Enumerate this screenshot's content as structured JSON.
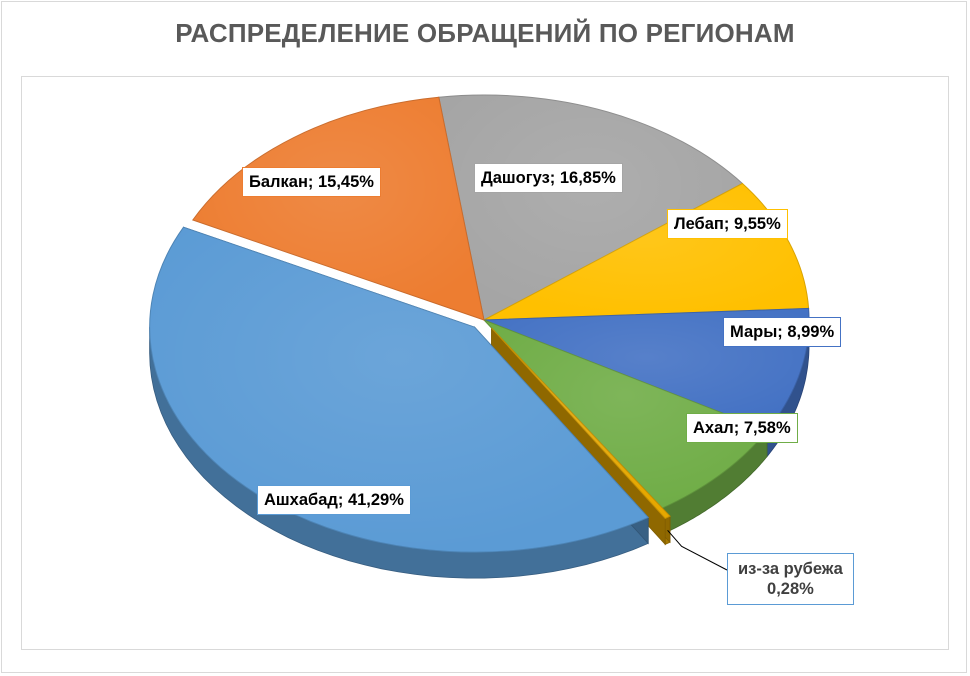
{
  "chart_data": {
    "type": "pie",
    "title": "РАСПРЕДЕЛЕНИЕ ОБРАЩЕНИЙ ПО РЕГИОНАМ",
    "categories": [
      "Дашогуз",
      "Лебап",
      "Мары",
      "Ахал",
      "из-за рубежа",
      "Ашхабад",
      "Балкан"
    ],
    "values": [
      16.85,
      9.55,
      8.99,
      7.58,
      0.28,
      41.29,
      15.45
    ],
    "data_labels": [
      "Дашогуз; 16,85%",
      "Лебап; 9,55%",
      "Мары; 8,99%",
      "Ахал; 7,58%",
      "из-за рубежа 0,28%",
      "Ашхабад; 41,29%",
      "Балкан; 15,45%"
    ],
    "label_parts": {
      "abroad_line1": "из-за рубежа",
      "abroad_line2": "0,28%"
    },
    "colors": [
      "#a5a5a5",
      "#ffc000",
      "#4472c4",
      "#70ad47",
      "#e6a800",
      "#5b9bd5",
      "#ed7d31"
    ],
    "style": "3D exploded pie"
  }
}
